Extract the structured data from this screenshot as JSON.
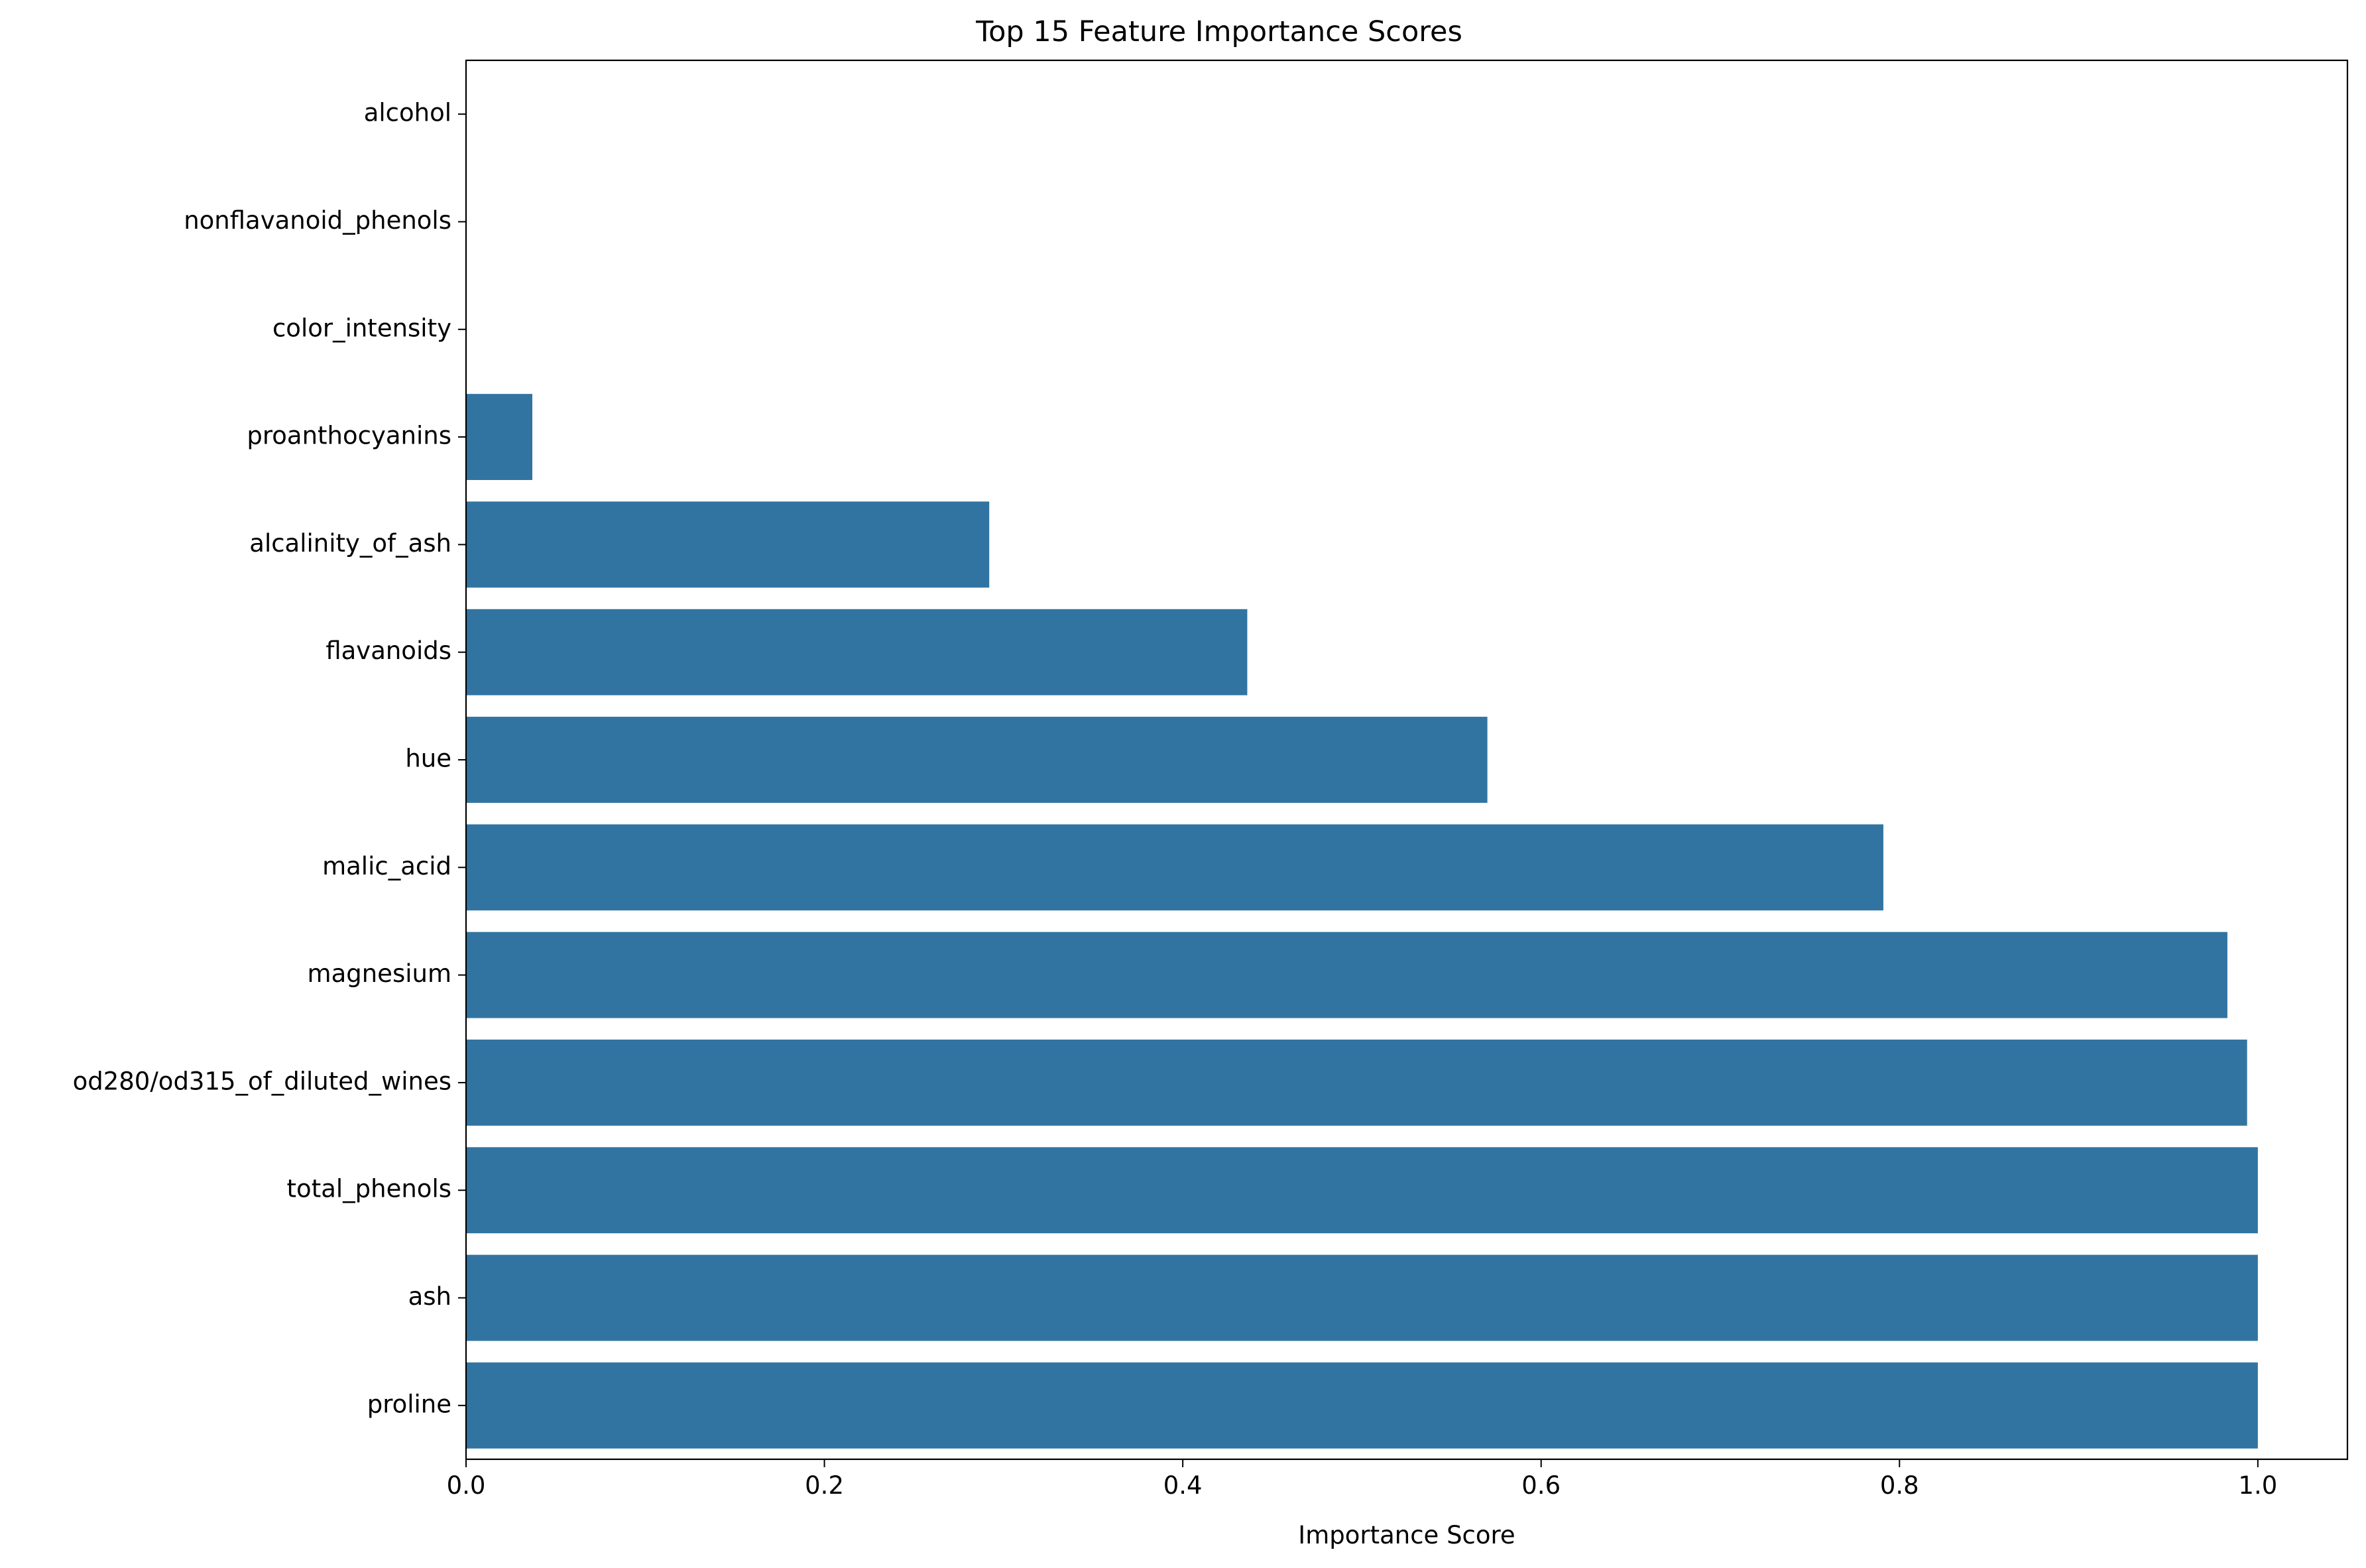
{
  "chart_data": {
    "type": "bar",
    "orientation": "horizontal",
    "title": "Top 15 Feature Importance Scores",
    "xlabel": "Importance Score",
    "ylabel": "",
    "categories": [
      "alcohol",
      "nonflavanoid_phenols",
      "color_intensity",
      "proanthocyanins",
      "alcalinity_of_ash",
      "flavanoids",
      "hue",
      "malic_acid",
      "magnesium",
      "od280/od315_of_diluted_wines",
      "total_phenols",
      "ash",
      "proline"
    ],
    "values": [
      0.0,
      0.0,
      0.0,
      0.037,
      0.292,
      0.436,
      0.57,
      0.791,
      0.983,
      0.994,
      1.0,
      1.0,
      1.0
    ],
    "xlim": [
      0,
      1.05
    ],
    "xticks": [
      0.0,
      0.2,
      0.4,
      0.6,
      0.8,
      1.0
    ],
    "xtick_labels": [
      "0.0",
      "0.2",
      "0.4",
      "0.6",
      "0.8",
      "1.0"
    ],
    "bar_color": "#3274a1",
    "grid": false,
    "legend": "none"
  }
}
